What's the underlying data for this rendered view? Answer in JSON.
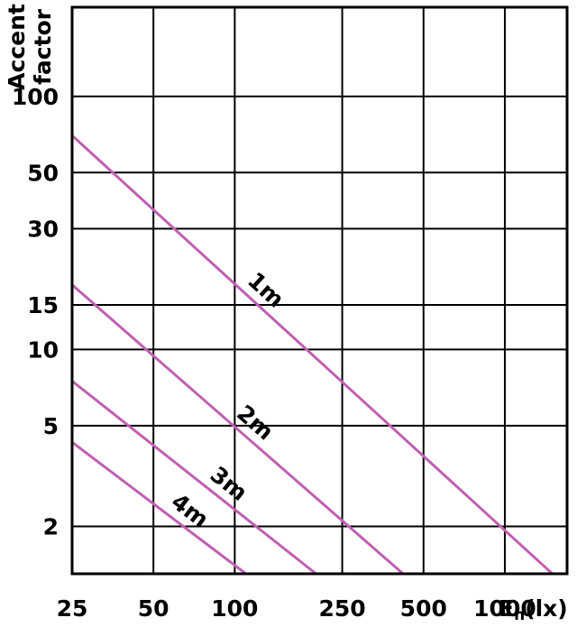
{
  "chart_data": {
    "type": "line",
    "ylabel_lines": [
      "Accent",
      "factor"
    ],
    "xlabel_main": "E",
    "xlabel_sub": "h",
    "xlabel_unit": "(lx)",
    "x_scale": "log",
    "y_scale": "log",
    "xlim": [
      25,
      1700
    ],
    "ylim": [
      1.3,
      225
    ],
    "x_ticks": [
      25,
      50,
      100,
      250,
      500,
      1000
    ],
    "x_tick_labels": [
      "25",
      "50",
      "100",
      "250",
      "500",
      "1000"
    ],
    "y_gridlines": [
      2,
      5,
      10,
      15,
      30,
      50,
      100,
      225
    ],
    "y_ticks": [
      2,
      5,
      10,
      15,
      30,
      50,
      100
    ],
    "y_tick_labels": [
      "2",
      "5",
      "10",
      "15",
      "30",
      "50",
      "100"
    ],
    "grid": true,
    "line_color": "#c060b0",
    "series": [
      {
        "name": "1m",
        "x": [
          25,
          1500
        ],
        "y": [
          70,
          1.3
        ]
      },
      {
        "name": "2m",
        "x": [
          25,
          420
        ],
        "y": [
          18,
          1.3
        ]
      },
      {
        "name": "3m",
        "x": [
          25,
          200
        ],
        "y": [
          7.5,
          1.3
        ]
      },
      {
        "name": "4m",
        "x": [
          25,
          110
        ],
        "y": [
          4.3,
          1.3
        ]
      }
    ]
  }
}
